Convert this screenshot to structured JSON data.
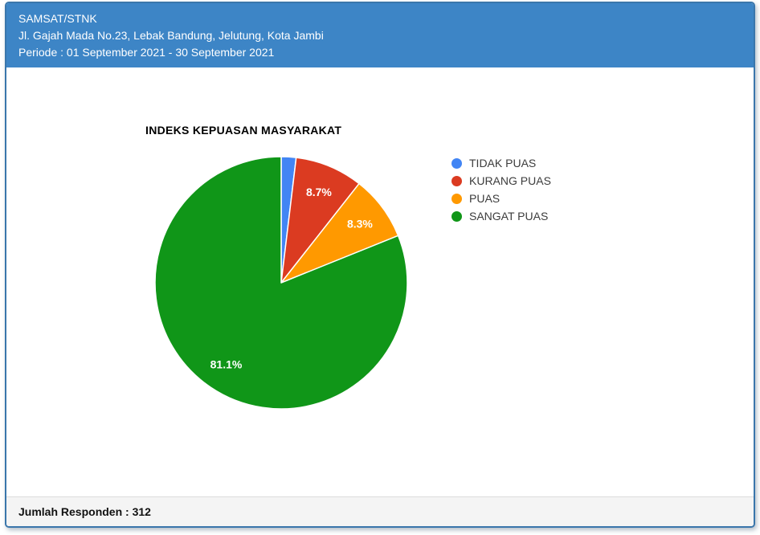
{
  "header": {
    "service_name": "SAMSAT/STNK",
    "address": "Jl. Gajah Mada No.23, Lebak Bandung, Jelutung, Kota Jambi",
    "periode": "Periode : 01 September 2021 - 30 September 2021"
  },
  "chart_data": {
    "type": "pie",
    "title": "INDEKS KEPUASAN MASYARAKAT",
    "categories": [
      "TIDAK PUAS",
      "KURANG PUAS",
      "PUAS",
      "SANGAT PUAS"
    ],
    "values": [
      1.9,
      8.7,
      8.3,
      81.1
    ],
    "slice_labels": [
      "",
      "8.7%",
      "8.3%",
      "81.1%"
    ],
    "colors": [
      "#4285f4",
      "#db3b21",
      "#ff9900",
      "#109618"
    ],
    "unit": "%",
    "legend_position": "right",
    "start_angle_deg": 0,
    "direction": "clockwise"
  },
  "footer": {
    "respondents": "Jumlah Responden : 312"
  },
  "theme": {
    "header_bg": "#3d85c6",
    "card_border": "#3a76ab",
    "footer_bg": "#f4f4f4",
    "footer_border": "#dcdcdc",
    "label_text": "#ffffff"
  }
}
